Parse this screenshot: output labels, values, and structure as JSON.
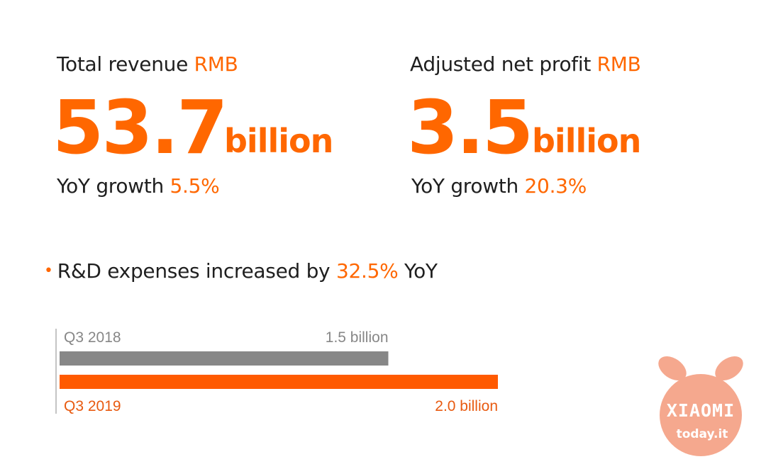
{
  "revenue": {
    "label_prefix": "Total revenue ",
    "label_currency": "RMB",
    "value": "53.7",
    "unit": "billion",
    "growth_prefix": "YoY growth ",
    "growth_value": "5.5%"
  },
  "profit": {
    "label_prefix": "Adjusted net profit ",
    "label_currency": "RMB",
    "value": "3.5",
    "unit": "billion",
    "growth_prefix": "YoY growth ",
    "growth_value": "20.3%"
  },
  "rd_note": {
    "bullet": "•",
    "prefix": "R&D expenses increased by ",
    "value": "32.5%",
    "suffix": " YoY"
  },
  "chart_data": {
    "type": "bar",
    "orientation": "horizontal",
    "categories": [
      "Q3 2018",
      "Q3 2019"
    ],
    "values": [
      1.5,
      2.0
    ],
    "value_labels": [
      "1.5 billion",
      "2.0 billion"
    ],
    "colors": [
      "#878787",
      "#ff5a00"
    ],
    "xlim": [
      0,
      2.0
    ],
    "grid": false
  },
  "logo": {
    "brand": "XIAOMI",
    "site": "today.it",
    "color": "#f5a88e"
  }
}
